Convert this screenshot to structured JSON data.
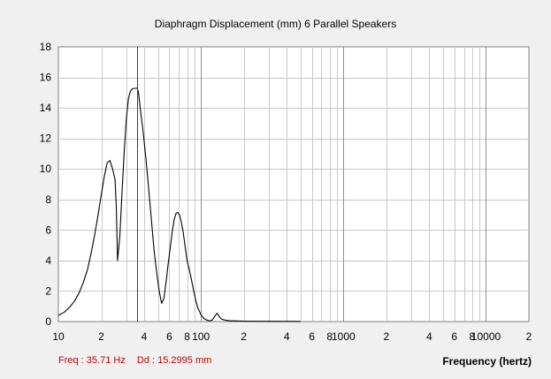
{
  "chart_data": {
    "type": "line",
    "title": "Diaphragm Displacement (mm)   6 Parallel Speakers",
    "xlabel": "Frequency (hertz)",
    "ylabel": "",
    "x_scale": "log",
    "xlim": [
      10,
      20000
    ],
    "ylim": [
      0,
      18
    ],
    "y_ticks": [
      0,
      2,
      4,
      6,
      8,
      10,
      12,
      14,
      16,
      18
    ],
    "x_tick_labels": [
      {
        "x": 10,
        "label": "10"
      },
      {
        "x": 20,
        "label": "2"
      },
      {
        "x": 40,
        "label": "4"
      },
      {
        "x": 60,
        "label": "6"
      },
      {
        "x": 80,
        "label": "8"
      },
      {
        "x": 100,
        "label": "100"
      },
      {
        "x": 200,
        "label": "2"
      },
      {
        "x": 400,
        "label": "4"
      },
      {
        "x": 600,
        "label": "6"
      },
      {
        "x": 800,
        "label": "8"
      },
      {
        "x": 1000,
        "label": "1000"
      },
      {
        "x": 2000,
        "label": "2"
      },
      {
        "x": 4000,
        "label": "4"
      },
      {
        "x": 6000,
        "label": "6"
      },
      {
        "x": 8000,
        "label": "8"
      },
      {
        "x": 10000,
        "label": "10000"
      },
      {
        "x": 20000,
        "label": "2"
      }
    ],
    "grid": true,
    "series": [
      {
        "color": "#000000",
        "x": [
          10,
          11,
          12,
          13,
          14,
          15,
          16,
          17,
          18,
          19,
          20,
          21,
          22,
          23,
          24,
          25,
          25.5,
          26,
          27,
          28,
          29,
          30,
          31,
          32,
          33,
          34,
          35,
          35.71,
          36.5,
          37.5,
          39,
          41,
          43,
          45,
          47,
          49,
          51,
          53,
          55,
          57,
          59,
          61,
          63,
          65,
          67,
          69,
          71,
          73,
          75,
          77,
          80,
          83,
          86,
          89,
          92,
          95,
          100,
          105,
          110,
          115,
          120,
          125,
          130,
          135,
          140,
          150,
          160,
          180,
          200,
          300,
          500,
          1000,
          2000,
          5000,
          10000,
          20000
        ],
        "values": [
          0.4,
          0.62,
          0.95,
          1.35,
          1.9,
          2.6,
          3.4,
          4.5,
          5.7,
          7.0,
          8.3,
          9.5,
          10.4,
          10.55,
          10.0,
          9.3,
          7.5,
          4.0,
          5.6,
          8.6,
          11.2,
          13.3,
          14.6,
          15.1,
          15.25,
          15.28,
          15.28,
          15.2995,
          15.0,
          14.0,
          12.7,
          10.8,
          8.7,
          6.6,
          4.6,
          3.2,
          2.0,
          1.2,
          1.5,
          2.6,
          3.8,
          4.9,
          5.9,
          6.7,
          7.1,
          7.15,
          6.95,
          6.5,
          5.9,
          5.1,
          4.0,
          3.4,
          2.7,
          2.0,
          1.4,
          0.9,
          0.45,
          0.2,
          0.1,
          0.05,
          0.1,
          0.35,
          0.55,
          0.3,
          0.15,
          0.08,
          0.05,
          0.04,
          0.03,
          0.02,
          0.01,
          0.0,
          0.0,
          0.0,
          0.0,
          0.0
        ]
      }
    ],
    "marker": {
      "x": 35.71,
      "color": "#cc0000"
    }
  },
  "readout": {
    "freq": "Freq : 35.71 Hz",
    "dd": "Dd : 15.2995 mm"
  },
  "colors": {
    "background": "#f0f0f0",
    "plot_background": "#ffffff",
    "grid": "#c8c8c8",
    "decade_grid": "#909090",
    "curve": "#000000",
    "marker": "#cc0000"
  }
}
